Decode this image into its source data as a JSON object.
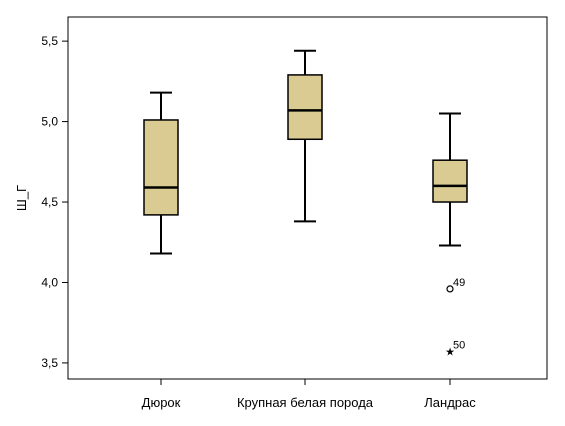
{
  "chart_data": {
    "type": "boxplot",
    "title": "",
    "xlabel": "",
    "ylabel": "Ш_Г",
    "ylim": [
      3.4,
      5.65
    ],
    "yticks": [
      3.5,
      4.0,
      4.5,
      5.0,
      5.5
    ],
    "ytick_labels": [
      "3,5",
      "4,0",
      "4,5",
      "5,0",
      "5,5"
    ],
    "grid": false,
    "box_color": "#d9cb92",
    "categories": [
      "Дюрок",
      "Крупная белая порода",
      "Ландрас"
    ],
    "boxes": [
      {
        "category": "Дюрок",
        "whisker_low": 4.18,
        "q1": 4.42,
        "median": 4.59,
        "q3": 5.01,
        "whisker_high": 5.18,
        "outliers": []
      },
      {
        "category": "Крупная белая порода",
        "whisker_low": 4.38,
        "q1": 4.89,
        "median": 5.07,
        "q3": 5.29,
        "whisker_high": 5.44,
        "outliers": []
      },
      {
        "category": "Ландрас",
        "whisker_low": 4.23,
        "q1": 4.5,
        "median": 4.6,
        "q3": 4.76,
        "whisker_high": 5.05,
        "outliers": [
          {
            "value": 3.96,
            "label": "49",
            "marker": "circle"
          },
          {
            "value": 3.57,
            "label": "50",
            "marker": "star"
          }
        ]
      }
    ]
  }
}
